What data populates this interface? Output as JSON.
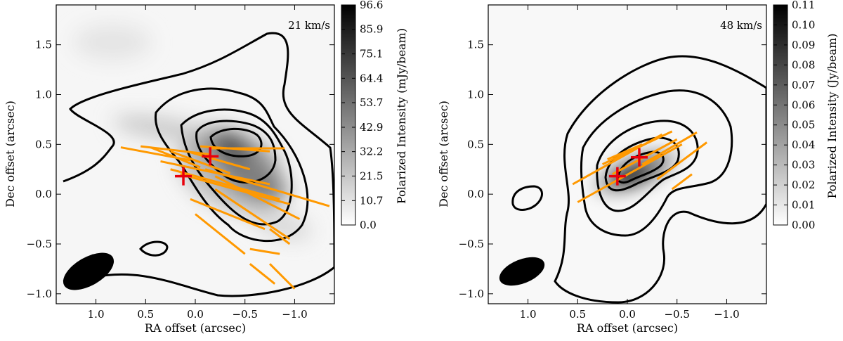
{
  "chart_data": [
    {
      "type": "heatmap",
      "title": "",
      "velocity_label": "21 km/s",
      "xlabel": "RA offset (arcsec)",
      "ylabel": "Dec offset (arcsec)",
      "xlim": [
        1.4,
        -1.4
      ],
      "ylim": [
        -1.1,
        1.9
      ],
      "xticks": [
        1.0,
        0.5,
        0.0,
        -0.5,
        -1.0
      ],
      "xtick_labels": [
        "1.0",
        "0.5",
        "0.0",
        "−0.5",
        "−1.0"
      ],
      "yticks": [
        -1.0,
        -0.5,
        0.0,
        0.5,
        1.0,
        1.5
      ],
      "ytick_labels": [
        "−1.0",
        "−0.5",
        "0.0",
        "0.5",
        "1.0",
        "1.5"
      ],
      "colorbar": {
        "label": "Polarized Intensity (mJy/beam)",
        "range": [
          0.0,
          96.6
        ],
        "ticks": [
          0.0,
          10.7,
          21.5,
          32.2,
          42.9,
          53.7,
          64.4,
          75.1,
          85.9,
          96.6
        ],
        "tick_labels": [
          "0.0",
          "10.7",
          "21.5",
          "32.2",
          "42.9",
          "53.7",
          "64.4",
          "75.1",
          "85.9",
          "96.6"
        ]
      },
      "emission_peak": [
        -0.3,
        0.25
      ],
      "sources": [
        [
          0.12,
          0.18
        ],
        [
          -0.15,
          0.38
        ]
      ],
      "beam": {
        "center": [
          1.1,
          -0.83
        ],
        "major": 0.3,
        "minor": 0.15,
        "pa_deg": 30
      },
      "vectors": [
        {
          "x0": 0.75,
          "y0": 0.47,
          "x1": 0.05,
          "y1": 0.34
        },
        {
          "x0": 0.55,
          "y0": 0.48,
          "x1": -0.15,
          "y1": 0.4
        },
        {
          "x0": 0.45,
          "y0": 0.47,
          "x1": -0.05,
          "y1": 0.27
        },
        {
          "x0": 0.25,
          "y0": 0.43,
          "x1": -0.35,
          "y1": 0.21
        },
        {
          "x0": 0.05,
          "y0": 0.42,
          "x1": -0.55,
          "y1": 0.25
        },
        {
          "x0": -0.05,
          "y0": 0.48,
          "x1": -0.75,
          "y1": 0.43
        },
        {
          "x0": -0.15,
          "y0": 0.46,
          "x1": -0.9,
          "y1": 0.46
        },
        {
          "x0": 0.35,
          "y0": 0.33,
          "x1": -0.75,
          "y1": 0.1
        },
        {
          "x0": 0.25,
          "y0": 0.25,
          "x1": -0.85,
          "y1": -0.05
        },
        {
          "x0": 0.15,
          "y0": 0.2,
          "x1": -0.95,
          "y1": -0.1
        },
        {
          "x0": -0.1,
          "y0": 0.25,
          "x1": -1.35,
          "y1": -0.12
        },
        {
          "x0": -0.2,
          "y0": 0.18,
          "x1": -1.05,
          "y1": -0.25
        },
        {
          "x0": -0.2,
          "y0": 0.05,
          "x1": -0.95,
          "y1": -0.45
        },
        {
          "x0": 0.05,
          "y0": -0.05,
          "x1": -0.7,
          "y1": -0.35
        },
        {
          "x0": 0.0,
          "y0": -0.2,
          "x1": -0.5,
          "y1": -0.6
        },
        {
          "x0": -0.55,
          "y0": -0.55,
          "x1": -0.85,
          "y1": -0.6
        },
        {
          "x0": -0.75,
          "y0": -0.35,
          "x1": -0.95,
          "y1": -0.5
        },
        {
          "x0": -0.55,
          "y0": -0.7,
          "x1": -0.8,
          "y1": -0.9
        },
        {
          "x0": -0.75,
          "y0": -0.7,
          "x1": -1.0,
          "y1": -0.95
        }
      ]
    },
    {
      "type": "heatmap",
      "title": "",
      "velocity_label": "48 km/s",
      "xlabel": "RA offset (arcsec)",
      "ylabel": "Dec offset (arcsec)",
      "xlim": [
        1.4,
        -1.4
      ],
      "ylim": [
        -1.1,
        1.9
      ],
      "xticks": [
        1.0,
        0.5,
        0.0,
        -0.5,
        -1.0
      ],
      "xtick_labels": [
        "1.0",
        "0.5",
        "0.0",
        "−0.5",
        "−1.0"
      ],
      "yticks": [
        -1.0,
        -0.5,
        0.0,
        0.5,
        1.0,
        1.5
      ],
      "ytick_labels": [
        "−1.0",
        "−0.5",
        "0.0",
        "0.5",
        "1.0",
        "1.5"
      ],
      "colorbar": {
        "label": "Polarized Intensity (Jy/beam)",
        "range": [
          0.0,
          0.11
        ],
        "ticks": [
          0.0,
          0.01,
          0.02,
          0.03,
          0.04,
          0.05,
          0.06,
          0.07,
          0.08,
          0.09,
          0.1,
          0.11
        ],
        "tick_labels": [
          "0.00",
          "0.01",
          "0.02",
          "0.03",
          "0.04",
          "0.05",
          "0.06",
          "0.07",
          "0.08",
          "0.09",
          "0.10",
          "0.11"
        ]
      },
      "emission_peak": [
        -0.05,
        0.3
      ],
      "sources": [
        [
          0.1,
          0.18
        ],
        [
          -0.12,
          0.37
        ]
      ],
      "beam": {
        "center": [
          1.12,
          -0.83
        ],
        "major": 0.3,
        "minor": 0.15,
        "pa_deg": 30
      },
      "vectors": [
        {
          "x0": 0.55,
          "y0": 0.1,
          "x1": -0.35,
          "y1": 0.6
        },
        {
          "x0": 0.5,
          "y0": -0.08,
          "x1": -0.55,
          "y1": 0.5
        },
        {
          "x0": 0.25,
          "y0": 0.3,
          "x1": -0.45,
          "y1": 0.63
        },
        {
          "x0": 0.15,
          "y0": 0.2,
          "x1": -0.5,
          "y1": 0.55
        },
        {
          "x0": 0.2,
          "y0": 0.35,
          "x1": -0.15,
          "y1": 0.5
        },
        {
          "x0": -0.15,
          "y0": 0.3,
          "x1": -0.7,
          "y1": 0.62
        },
        {
          "x0": -0.3,
          "y0": 0.15,
          "x1": -0.8,
          "y1": 0.52
        },
        {
          "x0": -0.45,
          "y0": 0.05,
          "x1": -0.65,
          "y1": 0.2
        }
      ]
    }
  ]
}
